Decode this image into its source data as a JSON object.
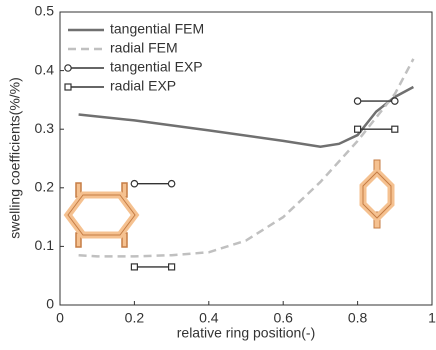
{
  "chart_data": {
    "type": "line",
    "x_label": "relative ring position(-)",
    "y_label": "swelling coefficients(%/%)",
    "xlim": [
      0,
      1
    ],
    "xticks": [
      0,
      0.2,
      0.4,
      0.6,
      0.8,
      1
    ],
    "ylim": [
      0,
      0.5
    ],
    "yticks": [
      0,
      0.1,
      0.2,
      0.3,
      0.4,
      0.5
    ],
    "legend": "upper-left",
    "series": [
      {
        "name": "tangential FEM",
        "color": "#707070",
        "style": "solid",
        "marker": "none",
        "x": [
          0.05,
          0.2,
          0.4,
          0.6,
          0.7,
          0.75,
          0.8,
          0.85,
          0.9,
          0.95
        ],
        "values": [
          0.325,
          0.315,
          0.298,
          0.28,
          0.27,
          0.275,
          0.29,
          0.33,
          0.355,
          0.372
        ]
      },
      {
        "name": "radial FEM",
        "color": "#c0c0c0",
        "style": "dashed",
        "marker": "none",
        "x": [
          0.05,
          0.1,
          0.2,
          0.3,
          0.4,
          0.5,
          0.6,
          0.7,
          0.8,
          0.9,
          0.95
        ],
        "values": [
          0.085,
          0.083,
          0.083,
          0.085,
          0.09,
          0.11,
          0.15,
          0.21,
          0.28,
          0.36,
          0.42
        ]
      },
      {
        "name": "tangential EXP",
        "color": "#333333",
        "style": "solid",
        "marker": "circle",
        "x": [
          0.2,
          0.3,
          null,
          0.8,
          0.9
        ],
        "values": [
          0.207,
          0.207,
          null,
          0.348,
          0.348
        ]
      },
      {
        "name": "radial EXP",
        "color": "#333333",
        "style": "solid",
        "marker": "square",
        "x": [
          0.2,
          0.3,
          null,
          0.8,
          0.9
        ],
        "values": [
          0.065,
          0.065,
          null,
          0.3,
          0.3
        ]
      }
    ]
  }
}
